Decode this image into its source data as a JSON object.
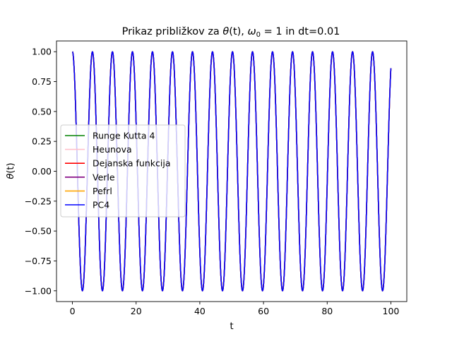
{
  "chart_data": {
    "type": "line",
    "title_prefix": "Prikaz približkov za ",
    "title_theta": "θ",
    "title_t": "(t), ",
    "title_omega": "ω",
    "title_sub": "0",
    "title_suffix": " = 1 in dt=0.01",
    "xlabel": "t",
    "ylabel_theta": "θ",
    "ylabel_t": "(t)",
    "xlim": [
      -5,
      105
    ],
    "ylim": [
      -1.09,
      1.09
    ],
    "xticks": [
      0,
      20,
      40,
      60,
      80,
      100
    ],
    "xtick_labels": [
      "0",
      "20",
      "40",
      "60",
      "80",
      "100"
    ],
    "yticks": [
      -1.0,
      -0.75,
      -0.5,
      -0.25,
      0.0,
      0.25,
      0.5,
      0.75,
      1.0
    ],
    "ytick_labels": [
      "−1.00",
      "−0.75",
      "−0.50",
      "−0.25",
      "0.00",
      "0.25",
      "0.50",
      "0.75",
      "1.00"
    ],
    "t_range": [
      0,
      100
    ],
    "dt": 0.01,
    "omega0": 1,
    "function": "cos",
    "grid": false,
    "legend_position": "center-left",
    "series": [
      {
        "name": "Runge Kutta 4",
        "color": "#008000"
      },
      {
        "name": "Heunova",
        "color": "#ffc0cb"
      },
      {
        "name": "Dejanska funkcija",
        "color": "#ff0000"
      },
      {
        "name": "Verle",
        "color": "#800080"
      },
      {
        "name": "Pefrl",
        "color": "#ffa500"
      },
      {
        "name": "PC4",
        "color": "#0000ff"
      }
    ]
  }
}
